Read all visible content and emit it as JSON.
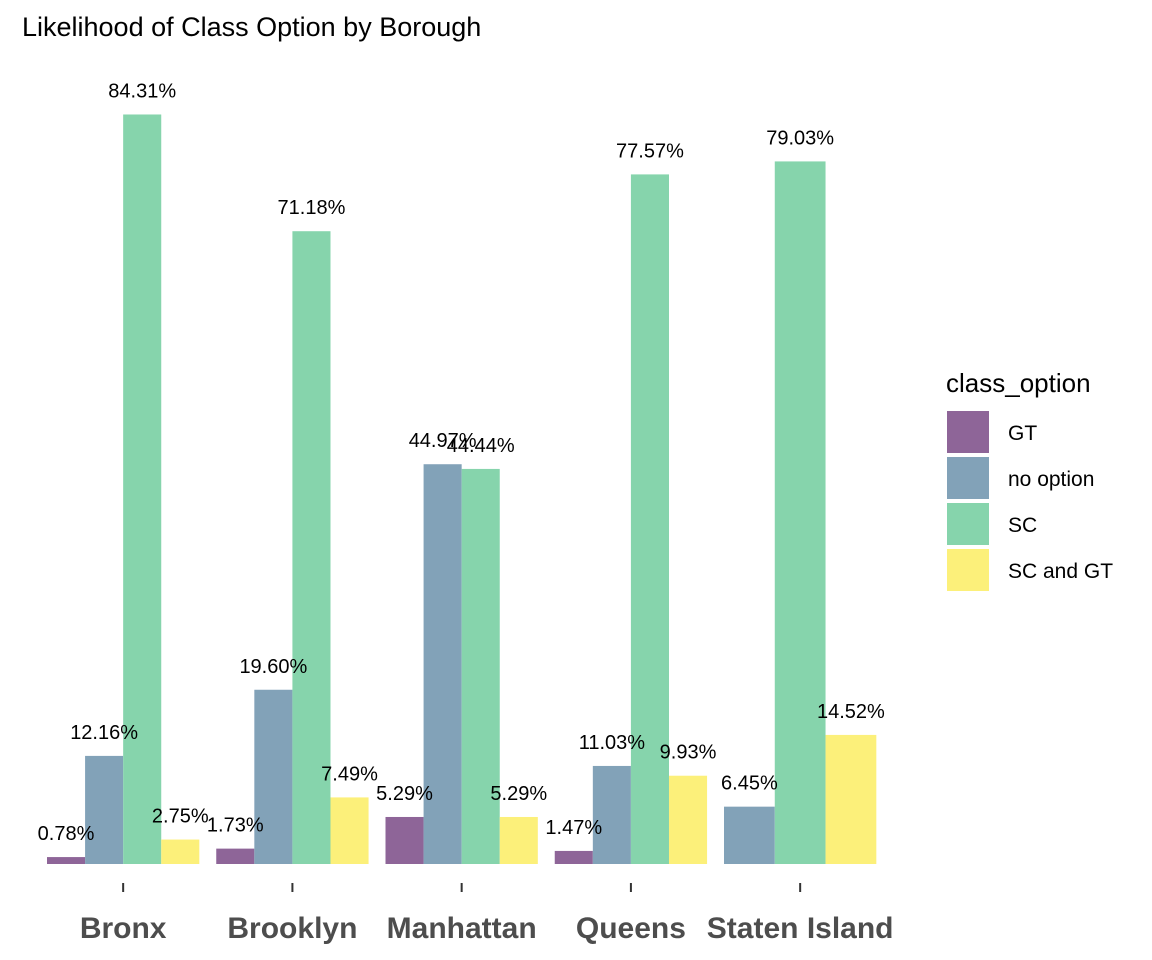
{
  "chart_data": {
    "type": "bar",
    "title": "Likelihood of Class Option by Borough",
    "xlabel": "",
    "ylabel": "",
    "ylim": [
      0,
      90
    ],
    "grid": false,
    "legend_position": "right",
    "legend_title": "class_option",
    "categories": [
      "Bronx",
      "Brooklyn",
      "Manhattan",
      "Queens",
      "Staten Island"
    ],
    "series": [
      {
        "name": "GT",
        "color": "#8e6598",
        "values": [
          0.78,
          1.73,
          5.29,
          1.47,
          null
        ],
        "labels": [
          "0.78%",
          "1.73%",
          "5.29%",
          "1.47%",
          null
        ]
      },
      {
        "name": "no option",
        "color": "#82a2b8",
        "values": [
          12.16,
          19.6,
          44.97,
          11.03,
          6.45
        ],
        "labels": [
          "12.16%",
          "19.60%",
          "44.97%",
          "11.03%",
          "6.45%"
        ]
      },
      {
        "name": "SC",
        "color": "#86d4ac",
        "values": [
          84.31,
          71.18,
          44.44,
          77.57,
          79.03
        ],
        "labels": [
          "84.31%",
          "71.18%",
          "44.44%",
          "77.57%",
          "79.03%"
        ]
      },
      {
        "name": "SC and GT",
        "color": "#fcf07a",
        "values": [
          2.75,
          7.49,
          5.29,
          9.93,
          14.52
        ],
        "labels": [
          "2.75%",
          "7.49%",
          "5.29%",
          "9.93%",
          "14.52%"
        ]
      }
    ]
  }
}
